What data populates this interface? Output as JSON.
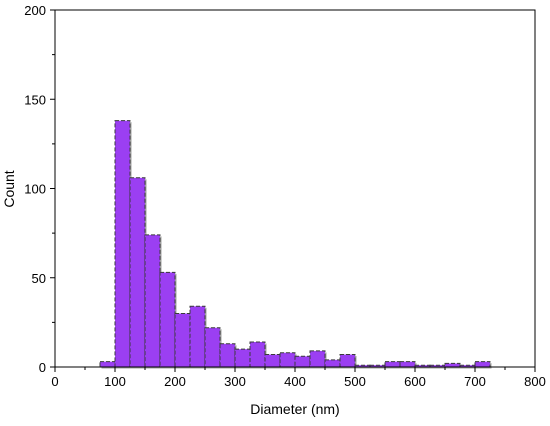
{
  "chart_data": {
    "type": "bar",
    "xlabel": "Diameter (nm)",
    "ylabel": "Count",
    "xlim": [
      0,
      800
    ],
    "ylim": [
      0,
      200
    ],
    "xticks": [
      0,
      100,
      200,
      300,
      400,
      500,
      600,
      700,
      800
    ],
    "yticks": [
      0,
      50,
      100,
      150,
      200
    ],
    "bin_width": 25,
    "bins": [
      {
        "x": 75,
        "value": 3
      },
      {
        "x": 100,
        "value": 138
      },
      {
        "x": 125,
        "value": 106
      },
      {
        "x": 150,
        "value": 74
      },
      {
        "x": 175,
        "value": 53
      },
      {
        "x": 200,
        "value": 30
      },
      {
        "x": 225,
        "value": 34
      },
      {
        "x": 250,
        "value": 22
      },
      {
        "x": 275,
        "value": 13
      },
      {
        "x": 300,
        "value": 10
      },
      {
        "x": 325,
        "value": 14
      },
      {
        "x": 350,
        "value": 7
      },
      {
        "x": 375,
        "value": 8
      },
      {
        "x": 400,
        "value": 6
      },
      {
        "x": 425,
        "value": 9
      },
      {
        "x": 450,
        "value": 4
      },
      {
        "x": 475,
        "value": 7
      },
      {
        "x": 500,
        "value": 1
      },
      {
        "x": 525,
        "value": 1
      },
      {
        "x": 550,
        "value": 3
      },
      {
        "x": 575,
        "value": 3
      },
      {
        "x": 600,
        "value": 1
      },
      {
        "x": 625,
        "value": 1
      },
      {
        "x": 650,
        "value": 2
      },
      {
        "x": 675,
        "value": 1
      },
      {
        "x": 700,
        "value": 3
      }
    ],
    "colors": {
      "bar_fill": "#9b3ff2",
      "bar_edge": "#3a3a3a",
      "axis": "#000000"
    },
    "grid": false,
    "legend": false
  }
}
